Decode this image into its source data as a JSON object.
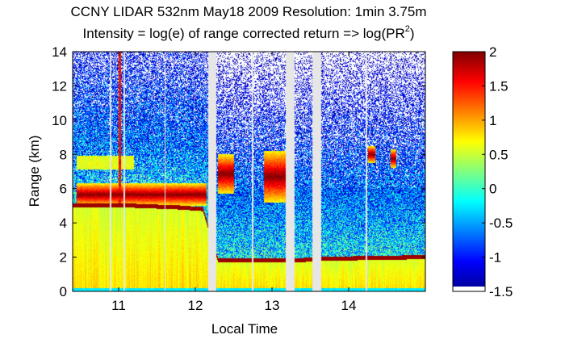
{
  "chart_data": {
    "type": "heatmap",
    "title_line1": "CCNY LIDAR 532nm May18 2009 Resolution: 1min 3.75m",
    "title_line2": "Intensity = log(e) of range corrected return => log(PR",
    "title_superscript": "2",
    "title_suffix": ")",
    "xlabel": "Local Time",
    "ylabel": "Range (km)",
    "xlim": [
      10.4,
      15.0
    ],
    "ylim": [
      0,
      14
    ],
    "x_ticks": [
      11,
      12,
      13,
      14
    ],
    "x_tick_labels": [
      "11",
      "12",
      "13",
      "14"
    ],
    "y_ticks": [
      0,
      2,
      4,
      6,
      8,
      10,
      12,
      14
    ],
    "y_tick_labels": [
      "0",
      "2",
      "4",
      "6",
      "8",
      "10",
      "12",
      "14"
    ],
    "colorbar": {
      "clim": [
        -1.5,
        2
      ],
      "colormap": "jet",
      "ticks": [
        -1.5,
        -1,
        -0.5,
        0,
        0.5,
        1,
        1.5,
        2
      ],
      "tick_labels": [
        "-1.5",
        "-1",
        "-0.5",
        "0",
        "0.5",
        "1",
        "1.5",
        "2"
      ]
    },
    "grid": false,
    "data_gaps_hours": [
      [
        10.88,
        10.9
      ],
      [
        11.06,
        11.08
      ],
      [
        11.6,
        11.61
      ],
      [
        12.17,
        12.27
      ],
      [
        12.74,
        12.76
      ],
      [
        13.18,
        13.29
      ],
      [
        13.53,
        13.64
      ],
      [
        14.22,
        14.24
      ]
    ],
    "features": {
      "boundary_layer_top_km": [
        {
          "x": 10.45,
          "y": 5.0
        },
        {
          "x": 11.2,
          "y": 5.0
        },
        {
          "x": 11.8,
          "y": 4.9
        },
        {
          "x": 12.1,
          "y": 4.8
        },
        {
          "x": 12.3,
          "y": 1.8
        },
        {
          "x": 13.3,
          "y": 1.8
        },
        {
          "x": 13.64,
          "y": 1.9
        },
        {
          "x": 15.0,
          "y": 2.0
        }
      ],
      "cloud_layers_km": [
        {
          "x_start": 10.45,
          "x_end": 12.15,
          "y_bottom": 5.0,
          "y_top": 6.3
        },
        {
          "x_start": 12.3,
          "x_end": 12.5,
          "y_bottom": 5.7,
          "y_top": 8.0
        },
        {
          "x_start": 12.9,
          "x_end": 13.18,
          "y_bottom": 5.2,
          "y_top": 8.2
        },
        {
          "x_start": 14.25,
          "x_end": 14.35,
          "y_bottom": 7.5,
          "y_top": 8.5
        },
        {
          "x_start": 14.55,
          "x_end": 14.62,
          "y_bottom": 7.2,
          "y_top": 8.3
        }
      ],
      "thin_layer_km": {
        "x_start": 10.45,
        "x_end": 11.2,
        "y": 7.5
      },
      "tall_plume": {
        "x": 11.02,
        "y_bottom": 5.0,
        "y_top": 14
      }
    }
  }
}
